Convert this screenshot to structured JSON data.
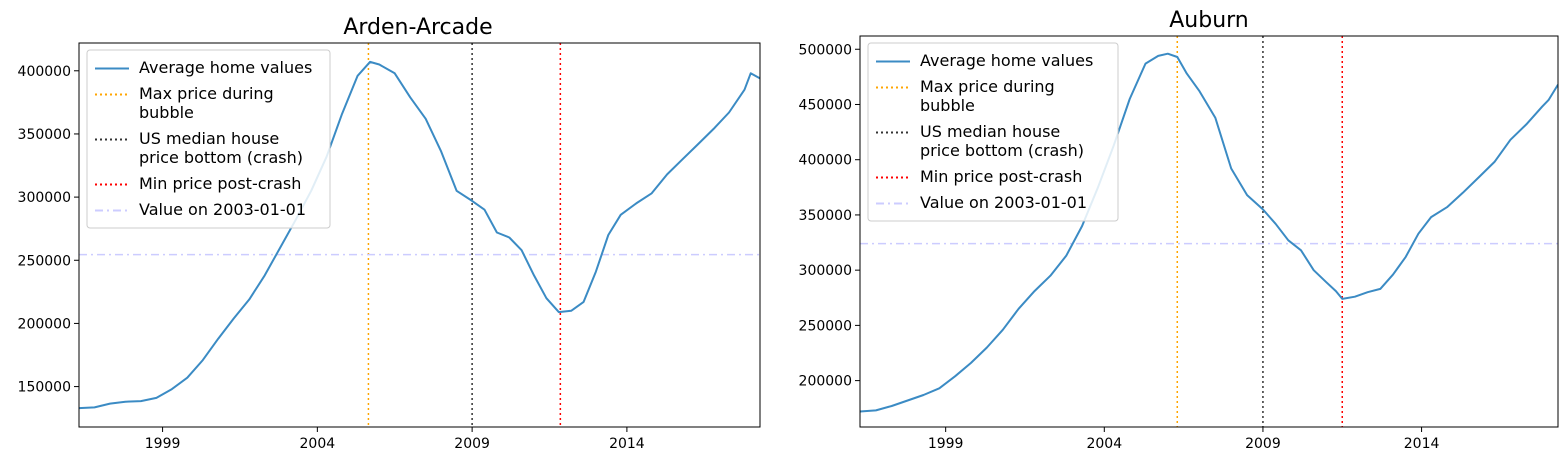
{
  "chart_data": [
    {
      "type": "line",
      "title": "Arden-Arcade",
      "xlabel": "",
      "ylabel": "",
      "xlim": [
        1996.3,
        2018.3
      ],
      "ylim": [
        118000,
        422000
      ],
      "yticks": [
        150000,
        200000,
        250000,
        300000,
        350000,
        400000
      ],
      "xticks": [
        1999,
        2004,
        2009,
        2014
      ],
      "grid": false,
      "legend_position": "top-left",
      "series": [
        {
          "name": "Average home values",
          "color": "#3b8bc4",
          "x": [
            1996.3,
            1996.8,
            1997.3,
            1997.8,
            1998.3,
            1998.8,
            1999.3,
            1999.8,
            2000.3,
            2000.8,
            2001.3,
            2001.8,
            2002.3,
            2002.8,
            2003.3,
            2003.8,
            2004.3,
            2004.8,
            2005.3,
            2005.7,
            2006.0,
            2006.5,
            2007.0,
            2007.5,
            2008.0,
            2008.5,
            2009.0,
            2009.4,
            2009.8,
            2010.2,
            2010.6,
            2011.0,
            2011.4,
            2011.8,
            2012.2,
            2012.6,
            2013.0,
            2013.4,
            2013.8,
            2014.3,
            2014.8,
            2015.3,
            2015.8,
            2016.3,
            2016.8,
            2017.3,
            2017.8,
            2018.0,
            2018.3
          ],
          "y": [
            133000,
            133500,
            136500,
            138000,
            138500,
            141000,
            148000,
            157000,
            171000,
            188000,
            204000,
            219000,
            238000,
            260000,
            282000,
            305000,
            332000,
            366000,
            396000,
            407000,
            405000,
            398000,
            379000,
            362000,
            336000,
            305000,
            297000,
            290000,
            272000,
            268000,
            258000,
            238000,
            220000,
            209000,
            210000,
            217000,
            241000,
            270000,
            286000,
            295000,
            303000,
            318000,
            330000,
            342000,
            354000,
            367000,
            385000,
            398000,
            394000
          ]
        }
      ],
      "reference_lines": [
        {
          "name": "Max price during bubble",
          "orientation": "vertical",
          "x": 2005.65,
          "color": "#ffa500",
          "style": "dotted"
        },
        {
          "name": "US median house price bottom (crash)",
          "orientation": "vertical",
          "x": 2009.0,
          "color": "#333333",
          "style": "dotted"
        },
        {
          "name": "Min price post-crash",
          "orientation": "vertical",
          "x": 2011.85,
          "color": "#ff0000",
          "style": "dotted"
        },
        {
          "name": "Value on 2003-01-01",
          "orientation": "horizontal",
          "y": 254500,
          "color": "#ccccff",
          "style": "dashdot"
        }
      ],
      "legend": [
        {
          "label_lines": [
            "Average home values"
          ],
          "color": "#3b8bc4",
          "style": "solid"
        },
        {
          "label_lines": [
            "Max price during",
            "bubble"
          ],
          "color": "#ffa500",
          "style": "dotted"
        },
        {
          "label_lines": [
            "US median house",
            "price bottom (crash)"
          ],
          "color": "#333333",
          "style": "dotted"
        },
        {
          "label_lines": [
            "Min price post-crash"
          ],
          "color": "#ff0000",
          "style": "dotted"
        },
        {
          "label_lines": [
            "Value on 2003-01-01"
          ],
          "color": "#ccccff",
          "style": "dashdot"
        }
      ]
    },
    {
      "type": "line",
      "title": "Auburn",
      "xlabel": "",
      "ylabel": "",
      "xlim": [
        1996.3,
        2018.3
      ],
      "ylim": [
        158000,
        512000
      ],
      "yticks": [
        200000,
        250000,
        300000,
        350000,
        400000,
        450000,
        500000
      ],
      "xticks": [
        1999,
        2004,
        2009,
        2014
      ],
      "grid": false,
      "legend_position": "top-left",
      "series": [
        {
          "name": "Average home values",
          "color": "#3b8bc4",
          "x": [
            1996.3,
            1996.8,
            1997.3,
            1997.8,
            1998.3,
            1998.8,
            1999.3,
            1999.8,
            2000.3,
            2000.8,
            2001.3,
            2001.8,
            2002.3,
            2002.8,
            2003.3,
            2003.8,
            2004.3,
            2004.8,
            2005.3,
            2005.7,
            2006.0,
            2006.3,
            2006.6,
            2007.0,
            2007.5,
            2008.0,
            2008.5,
            2009.0,
            2009.4,
            2009.8,
            2010.2,
            2010.6,
            2011.0,
            2011.3,
            2011.5,
            2011.9,
            2012.3,
            2012.7,
            2013.1,
            2013.5,
            2013.9,
            2014.3,
            2014.8,
            2015.3,
            2015.8,
            2016.3,
            2016.8,
            2017.3,
            2017.8,
            2018.0,
            2018.3
          ],
          "y": [
            172000,
            173000,
            177000,
            182000,
            187000,
            193000,
            204000,
            216000,
            230000,
            246000,
            265000,
            281000,
            295000,
            313000,
            340000,
            375000,
            413000,
            455000,
            487000,
            494000,
            496000,
            493000,
            478000,
            462000,
            438000,
            392000,
            368000,
            355000,
            342000,
            327000,
            318000,
            300000,
            289000,
            281000,
            274000,
            276000,
            280000,
            283000,
            296000,
            312000,
            333000,
            348000,
            357000,
            370000,
            384000,
            398000,
            418000,
            432000,
            448000,
            454000,
            468000
          ]
        }
      ],
      "reference_lines": [
        {
          "name": "Max price during bubble",
          "orientation": "vertical",
          "x": 2006.3,
          "color": "#ffa500",
          "style": "dotted"
        },
        {
          "name": "US median house price bottom (crash)",
          "orientation": "vertical",
          "x": 2009.0,
          "color": "#333333",
          "style": "dotted"
        },
        {
          "name": "Min price post-crash",
          "orientation": "vertical",
          "x": 2011.5,
          "color": "#ff0000",
          "style": "dotted"
        },
        {
          "name": "Value on 2003-01-01",
          "orientation": "horizontal",
          "y": 324000,
          "color": "#ccccff",
          "style": "dashdot"
        }
      ],
      "legend": [
        {
          "label_lines": [
            "Average home values"
          ],
          "color": "#3b8bc4",
          "style": "solid"
        },
        {
          "label_lines": [
            "Max price during",
            "bubble"
          ],
          "color": "#ffa500",
          "style": "dotted"
        },
        {
          "label_lines": [
            "US median house",
            "price bottom (crash)"
          ],
          "color": "#333333",
          "style": "dotted"
        },
        {
          "label_lines": [
            "Min price post-crash"
          ],
          "color": "#ff0000",
          "style": "dotted"
        },
        {
          "label_lines": [
            "Value on 2003-01-01"
          ],
          "color": "#ccccff",
          "style": "dashdot"
        }
      ]
    }
  ]
}
